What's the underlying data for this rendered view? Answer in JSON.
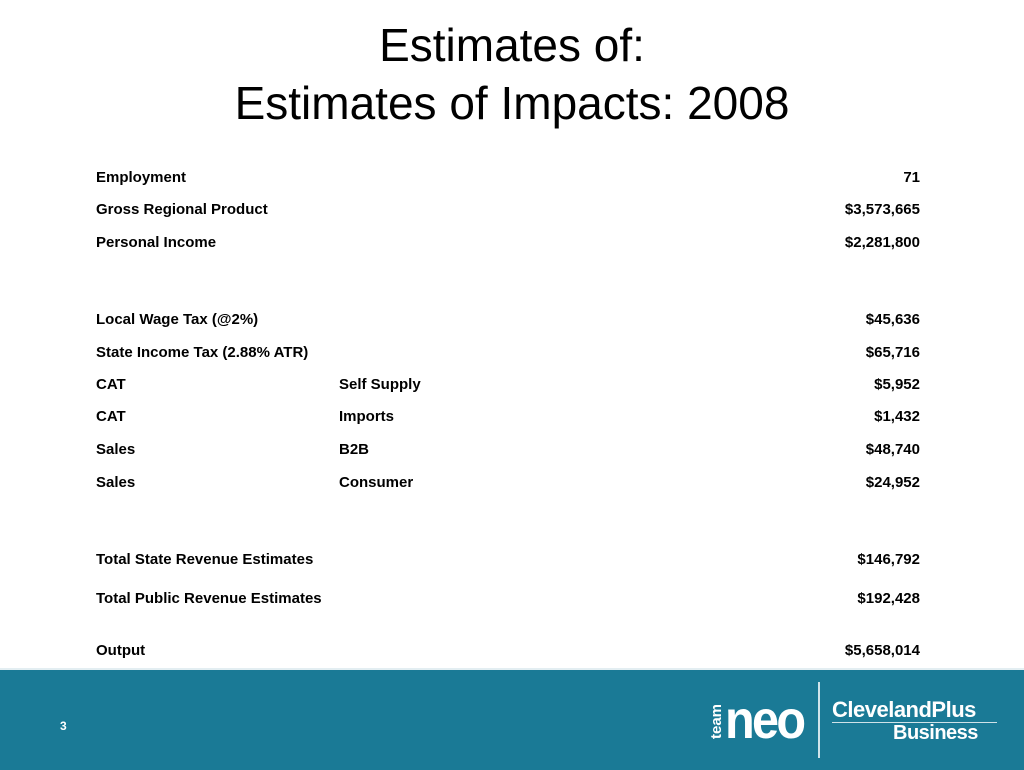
{
  "title": {
    "line1": "Estimates of:",
    "line2": "Estimates of Impacts: 2008"
  },
  "rows": [
    {
      "label": "Employment",
      "sub": "",
      "value": "71"
    },
    {
      "label": "Gross Regional Product",
      "sub": "",
      "value": "$3,573,665"
    },
    {
      "label": "Personal Income",
      "sub": "",
      "value": "$2,281,800"
    },
    {
      "label": "Local Wage Tax (@2%)",
      "sub": "",
      "value": "$45,636"
    },
    {
      "label": "State Income Tax (2.88% ATR)",
      "sub": "",
      "value": "$65,716"
    },
    {
      "label": "CAT",
      "sub": "Self Supply",
      "value": "$5,952"
    },
    {
      "label": "CAT",
      "sub": "Imports",
      "value": "$1,432"
    },
    {
      "label": "Sales",
      "sub": "B2B",
      "value": "$48,740"
    },
    {
      "label": "Sales",
      "sub": "Consumer",
      "value": "$24,952"
    },
    {
      "label": "Total State Revenue Estimates",
      "sub": "",
      "value": "$146,792"
    },
    {
      "label": "Total Public Revenue Estimates",
      "sub": "",
      "value": "$192,428"
    },
    {
      "label": "Output",
      "sub": "",
      "value": "$5,658,014"
    }
  ],
  "footer": {
    "page_number": "3",
    "logo_team": "team",
    "logo_neo": "neo",
    "logo_clevelandplus": "ClevelandPlus",
    "logo_business": "Business",
    "background_color": "#1a7a96"
  }
}
